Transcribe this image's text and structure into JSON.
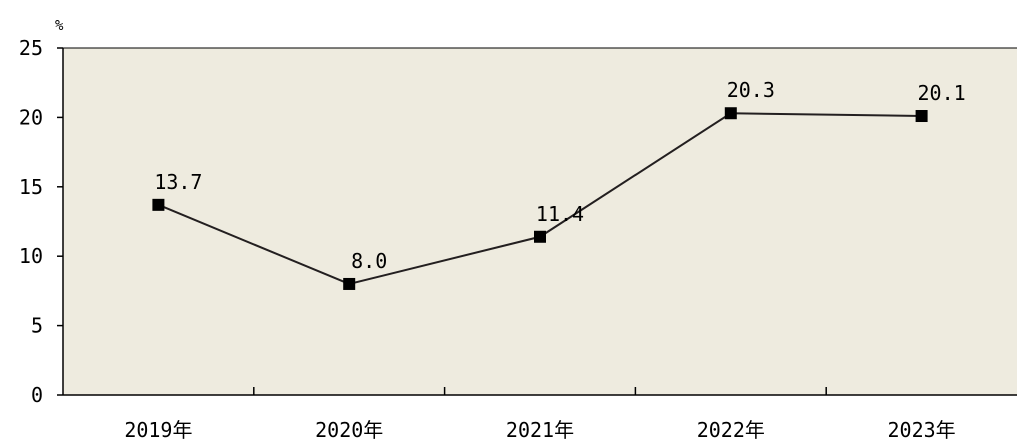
{
  "colors": {
    "plot_background": "#eeebdf",
    "line": "#231f20",
    "marker": "#000000",
    "axis": "#000000"
  },
  "chart_data": {
    "type": "line",
    "title": "",
    "xlabel": "",
    "ylabel": "%",
    "categories": [
      "2019年",
      "2020年",
      "2021年",
      "2022年",
      "2023年"
    ],
    "series": [
      {
        "values": [
          13.7,
          8.0,
          11.4,
          20.3,
          20.1
        ],
        "labels": [
          "13.7",
          "8.0",
          "11.4",
          "20.3",
          "20.1"
        ]
      }
    ],
    "ylim": [
      0,
      25
    ],
    "yticks": [
      0,
      5,
      10,
      15,
      20,
      25
    ],
    "grid": false,
    "marker": "square",
    "legend": "none"
  }
}
